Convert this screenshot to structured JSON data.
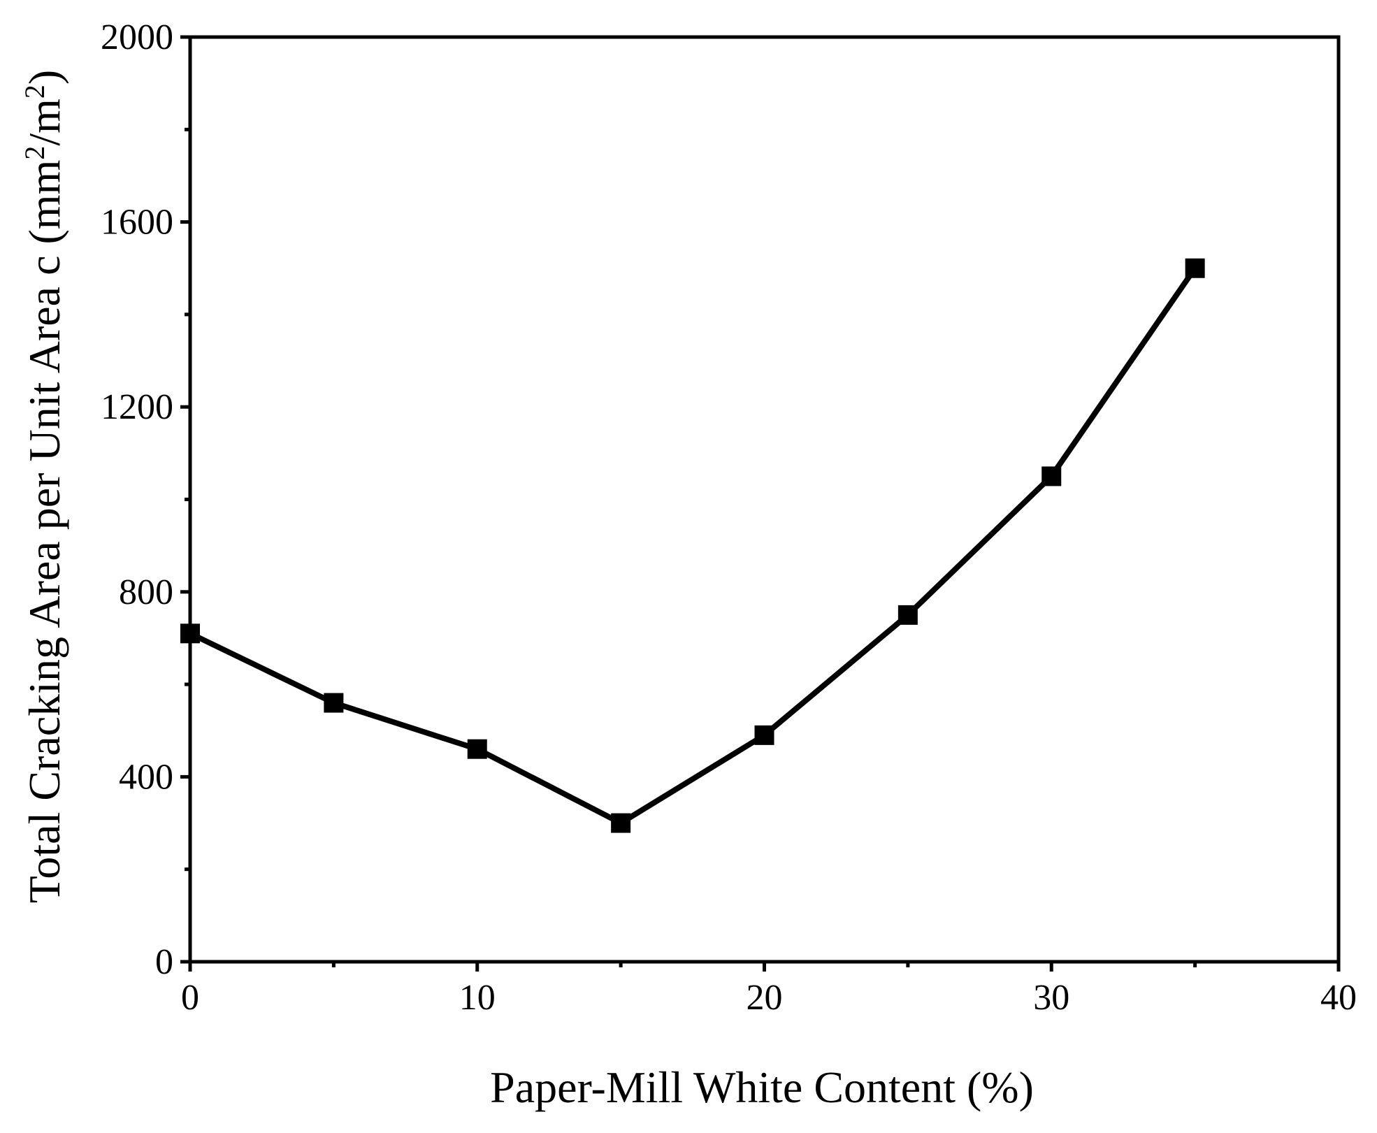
{
  "chart_data": {
    "type": "line",
    "title": "",
    "xlabel": "Paper-Mill White Content (%)",
    "ylabel_prefix": "Total Cracking Area per Unit Area c (mm",
    "ylabel_sup1": "2",
    "ylabel_mid": "/m",
    "ylabel_sup2": "2",
    "ylabel_suffix": ")",
    "xlim": [
      0,
      40
    ],
    "ylim": [
      0,
      2000
    ],
    "xticks": [
      0,
      10,
      20,
      30,
      40
    ],
    "yticks": [
      0,
      400,
      800,
      1200,
      1600,
      2000
    ],
    "xminor": [
      5,
      15,
      25,
      35
    ],
    "yminor": [
      200,
      600,
      1000,
      1400,
      1800
    ],
    "grid": false,
    "legend": "none",
    "color": "#000000",
    "marker": "square",
    "series": [
      {
        "x": [
          0,
          5,
          10,
          15,
          20,
          25,
          30,
          35
        ],
        "y": [
          710,
          560,
          460,
          300,
          490,
          750,
          1050,
          1500
        ]
      }
    ]
  }
}
